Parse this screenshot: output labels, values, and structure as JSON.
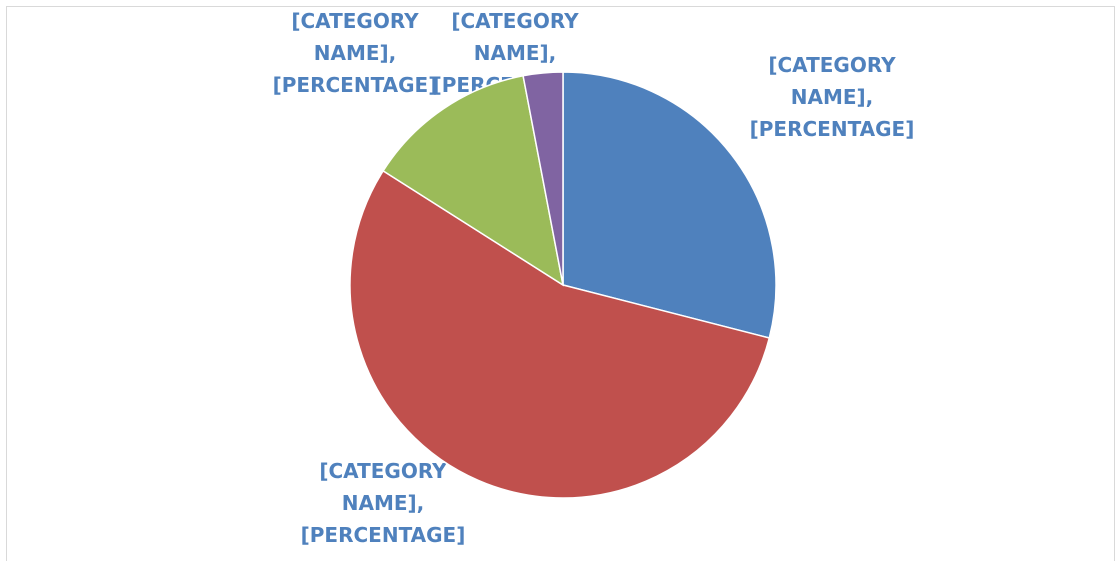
{
  "chart_data": {
    "type": "pie",
    "values": [
      29,
      55,
      13,
      3
    ],
    "colors": [
      "#4f81bd",
      "#c0504d",
      "#9bbb59",
      "#8064a2"
    ],
    "data_labels": [
      "[CATEGORY NAME], [PERCENTAGE]",
      "[CATEGORY NAME], [PERCENTAGE]",
      "[CATEGORY NAME], [PERCENTAGE]",
      "[CATEGORY NAME], [PERCENTAGE]"
    ],
    "label_color": "#4f81bd"
  }
}
